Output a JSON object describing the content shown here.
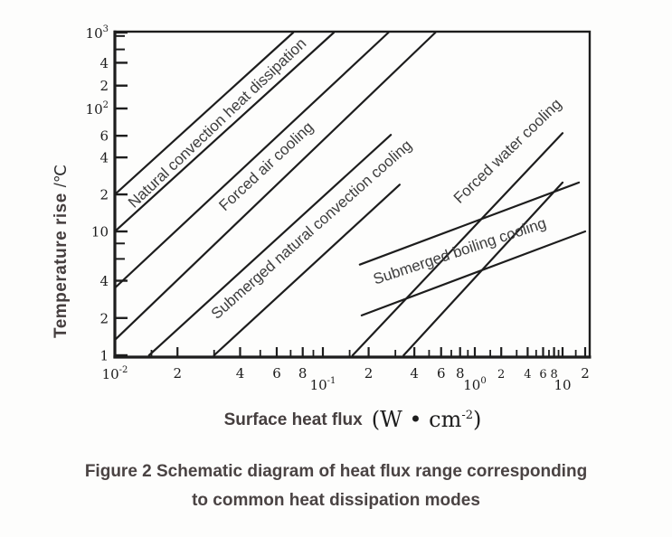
{
  "figure": {
    "caption_line1": "Figure 2 Schematic diagram of heat flux range corresponding",
    "caption_line2": "to common heat dissipation modes"
  },
  "axes": {
    "x_title": "Surface heat flux",
    "x_unit_main": "(W • cm",
    "x_unit_sup": "-2",
    "x_unit_close": ")",
    "y_title": "Temperature rise",
    "y_unit": "/℃"
  },
  "chart_data": {
    "type": "line",
    "title": "Schematic diagram of heat flux range corresponding to common heat dissipation modes",
    "xlabel": "Surface heat flux (W·cm⁻²)",
    "ylabel": "Temperature rise /℃",
    "x_scale": "log",
    "y_scale": "log",
    "xlim": [
      0.01,
      20
    ],
    "ylim": [
      1,
      1000
    ],
    "grid": false,
    "line_color": "#1d1d1d",
    "x_ticks": [
      {
        "v": 0.01,
        "base": "10",
        "sup": "-2"
      },
      {
        "v": 0.015,
        "minor": true
      },
      {
        "v": 0.02,
        "label": "2"
      },
      {
        "v": 0.03,
        "minor": true
      },
      {
        "v": 0.04,
        "label": "4"
      },
      {
        "v": 0.05,
        "minor": true
      },
      {
        "v": 0.06,
        "label": "6"
      },
      {
        "v": 0.07,
        "minor": true
      },
      {
        "v": 0.08,
        "label": "8"
      },
      {
        "v": 0.09,
        "minor": true
      },
      {
        "v": 0.1,
        "base": "10",
        "sup": "-1"
      },
      {
        "v": 0.15,
        "minor": true
      },
      {
        "v": 0.2,
        "label": "2"
      },
      {
        "v": 0.3,
        "minor": true
      },
      {
        "v": 0.4,
        "label": "4"
      },
      {
        "v": 0.5,
        "minor": true
      },
      {
        "v": 0.6,
        "label": "6"
      },
      {
        "v": 0.7,
        "minor": true
      },
      {
        "v": 0.8,
        "label": "8"
      },
      {
        "v": 0.9,
        "minor": true
      },
      {
        "v": 1,
        "base": "10",
        "sup": "0"
      },
      {
        "v": 1.5,
        "minor": true
      },
      {
        "v": 2,
        "label": "2",
        "small": true
      },
      {
        "v": 3,
        "minor": true
      },
      {
        "v": 4,
        "label": "4",
        "small": true
      },
      {
        "v": 5,
        "minor": true
      },
      {
        "v": 6,
        "label": "6",
        "small": true
      },
      {
        "v": 7,
        "minor": true
      },
      {
        "v": 8,
        "label": "8",
        "small": true
      },
      {
        "v": 9,
        "minor": true
      },
      {
        "v": 10,
        "base": "10"
      },
      {
        "v": 15,
        "minor": true
      },
      {
        "v": 20,
        "label": "2"
      }
    ],
    "y_ticks": [
      {
        "v": 1000,
        "base": "10",
        "sup": "3"
      },
      {
        "v": 900,
        "minor": true
      },
      {
        "v": 600,
        "minor": true
      },
      {
        "v": 400,
        "label": "4"
      },
      {
        "v": 200,
        "label": "2"
      },
      {
        "v": 100,
        "base": "10",
        "sup": "2"
      },
      {
        "v": 60,
        "label": "6"
      },
      {
        "v": 40,
        "label": "4"
      },
      {
        "v": 20,
        "label": "2"
      },
      {
        "v": 10,
        "label": "10"
      },
      {
        "v": 8,
        "minor": true
      },
      {
        "v": 6,
        "minor": true
      },
      {
        "v": 4,
        "label": "4"
      },
      {
        "v": 2,
        "label": "2"
      },
      {
        "v": 1,
        "label": "1"
      }
    ],
    "series": [
      {
        "name": "natural-convection",
        "label": "Natural convection heat dissipation",
        "lines": [
          [
            [
              0.01,
              20
            ],
            [
              0.072,
              1000
            ]
          ],
          [
            [
              0.01,
              10
            ],
            [
              0.118,
              1000
            ]
          ]
        ]
      },
      {
        "name": "forced-air",
        "label": "Forced air cooling",
        "lines": [
          [
            [
              0.01,
              3.5
            ],
            [
              0.27,
              1000
            ]
          ],
          [
            [
              0.01,
              1.33
            ],
            [
              0.55,
              1000
            ]
          ]
        ]
      },
      {
        "name": "submerged-natural-convection",
        "label": "Submerged natural convection cooling",
        "lines": [
          [
            [
              0.0146,
              1
            ],
            [
              0.28,
              61
            ]
          ],
          [
            [
              0.03,
              1
            ],
            [
              0.32,
              24
            ]
          ]
        ]
      },
      {
        "name": "forced-water",
        "label": "Forced water cooling",
        "lines": [
          [
            [
              0.157,
              1
            ],
            [
              10,
              63
            ]
          ],
          [
            [
              0.34,
              1
            ],
            [
              10,
              25
            ]
          ]
        ]
      },
      {
        "name": "submerged-boiling",
        "label": "Submerged boiling cooling",
        "lines": [
          [
            [
              0.175,
              5.4
            ],
            [
              16.5,
              25
            ]
          ],
          [
            [
              0.18,
              2.1
            ],
            [
              20,
              10
            ]
          ]
        ]
      }
    ]
  }
}
